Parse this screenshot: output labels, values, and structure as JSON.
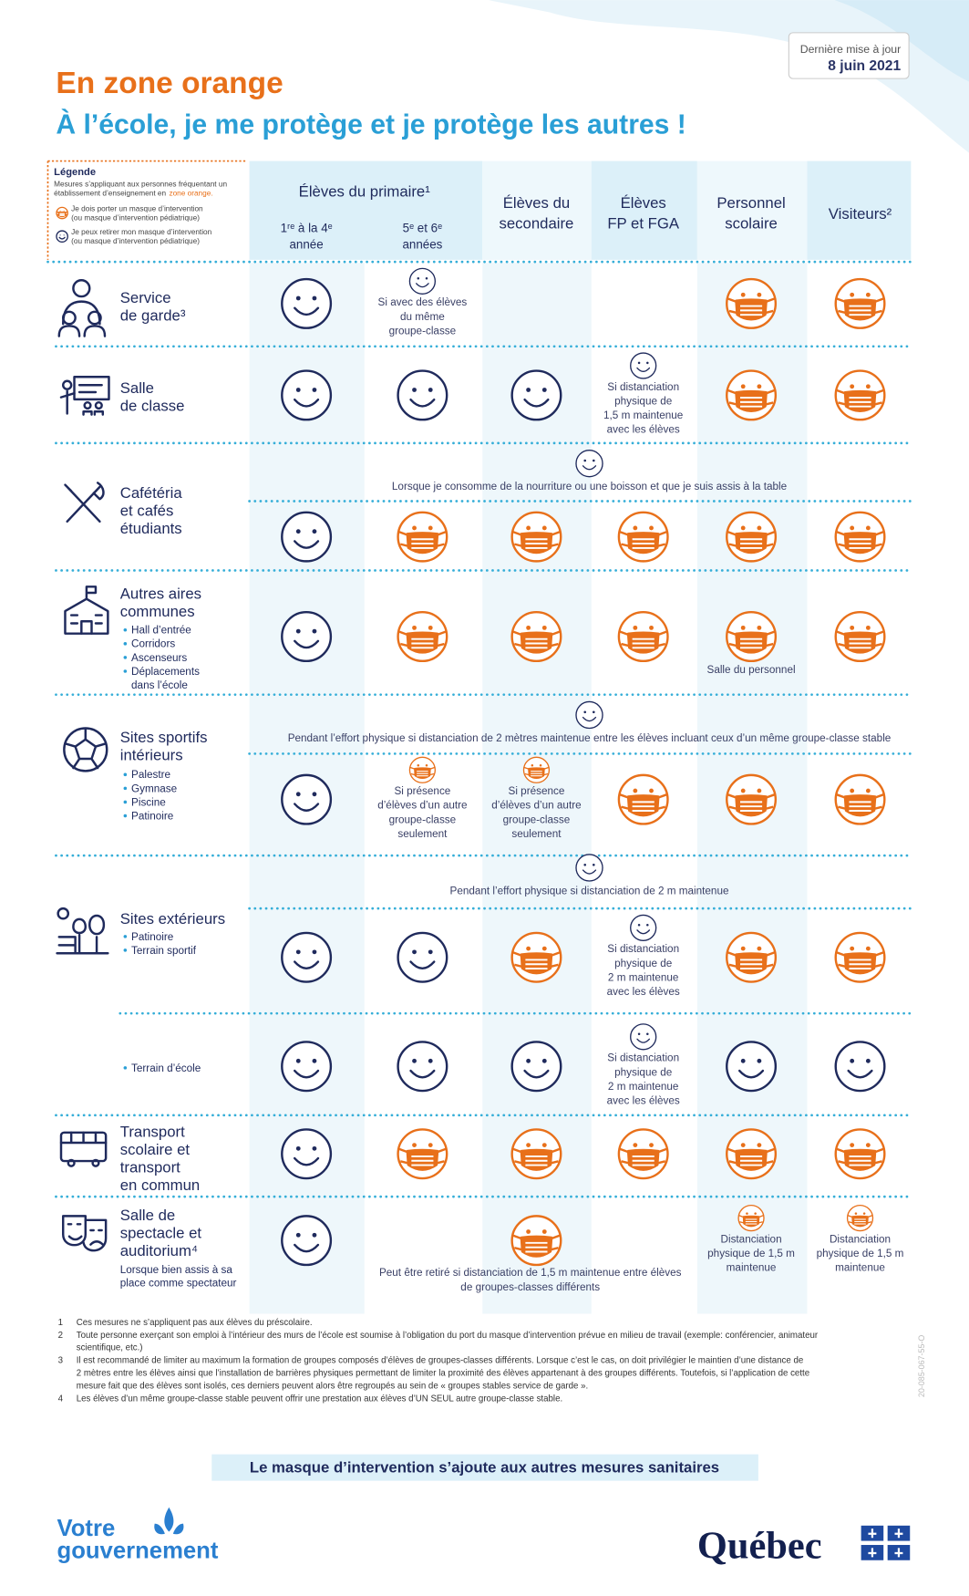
{
  "header": {
    "title": "En zone orange",
    "subtitle": "À l’école, je me protège et je protège les autres !",
    "updated_label": "Dernière mise à jour",
    "updated_date": "8 juin 2021"
  },
  "legend": {
    "title": "Légende",
    "intro": [
      "Mesures s’appliquant aux personnes fréquentant un",
      "établissement d’enseignement en"
    ],
    "intro_highlight": "zone orange.",
    "items": [
      {
        "icon": "mask",
        "text": [
          "Je dois porter un masque d’intervention",
          "(ou masque d’intervention pédiatrique)"
        ]
      },
      {
        "icon": "smile",
        "text": [
          "Je peux retirer mon masque d’intervention",
          "(ou masque d’intervention pédiatrique)"
        ]
      }
    ]
  },
  "column_group": "Élèves du primaire¹",
  "columns": [
    [
      "1ʳᵉ à la 4ᵉ",
      "année"
    ],
    [
      "5ᵉ et 6ᵉ",
      "années"
    ],
    [
      "Élèves du",
      "secondaire"
    ],
    [
      "Élèves",
      "FP et FGA"
    ],
    [
      "Personnel",
      "scolaire"
    ],
    [
      "Visiteurs²"
    ]
  ],
  "rows": [
    {
      "label": [
        "Service",
        "de garde³"
      ],
      "subrows": [
        {
          "cells": [
            {
              "icon": "smile"
            },
            {
              "icon": "smile",
              "note": [
                "Si avec des élèves",
                "du même",
                "groupe-classe"
              ]
            },
            null,
            null,
            {
              "icon": "mask"
            },
            {
              "icon": "mask"
            }
          ]
        }
      ]
    },
    {
      "label": [
        "Salle",
        "de classe"
      ],
      "subrows": [
        {
          "cells": [
            {
              "icon": "smile"
            },
            {
              "icon": "smile"
            },
            {
              "icon": "smile"
            },
            {
              "icon": "smile",
              "note": [
                "Si distanciation",
                "physique de",
                "1,5 m maintenue",
                "avec les élèves"
              ]
            },
            {
              "icon": "mask"
            },
            {
              "icon": "mask"
            }
          ]
        }
      ]
    },
    {
      "label": [
        "Cafétéria",
        "et cafés",
        "étudiants"
      ],
      "condition": {
        "icon": "smile",
        "text": "Lorsque je consomme de la nourriture ou une boisson et que je suis assis à la table"
      },
      "subrows": [
        {
          "cells": [
            {
              "icon": "smile"
            },
            {
              "icon": "mask"
            },
            {
              "icon": "mask"
            },
            {
              "icon": "mask"
            },
            {
              "icon": "mask"
            },
            {
              "icon": "mask"
            }
          ]
        }
      ]
    },
    {
      "label": [
        "Autres aires",
        "communes"
      ],
      "subrows": [
        {
          "bullets": [
            "Hall d’entrée",
            "Corridors",
            "Ascenseurs",
            [
              "Déplacements",
              "dans l’école"
            ]
          ],
          "cells": [
            {
              "icon": "smile"
            },
            {
              "icon": "mask"
            },
            {
              "icon": "mask"
            },
            {
              "icon": "mask"
            },
            {
              "icon": "mask",
              "note": [
                "Salle du personnel"
              ]
            },
            {
              "icon": "mask"
            }
          ]
        }
      ]
    },
    {
      "label": [
        "Sites sportifs",
        "intérieurs"
      ],
      "condition": {
        "icon": "smile",
        "text": "Pendant l’effort physique si distanciation de 2 mètres maintenue entre les élèves incluant ceux d’un même groupe-classe stable"
      },
      "subrows": [
        {
          "bullets": [
            "Palestre",
            "Gymnase",
            "Piscine",
            "Patinoire"
          ],
          "cells": [
            {
              "icon": "smile"
            },
            {
              "icon": "mask",
              "note": [
                "Si présence",
                "d’élèves d’un autre",
                "groupe-classe",
                "seulement"
              ]
            },
            {
              "icon": "mask",
              "note": [
                "Si présence",
                "d’élèves d’un autre",
                "groupe-classe",
                "seulement"
              ]
            },
            {
              "icon": "mask"
            },
            {
              "icon": "mask"
            },
            {
              "icon": "mask"
            }
          ]
        }
      ]
    },
    {
      "label": [
        "Sites extérieurs"
      ],
      "condition": {
        "icon": "smile",
        "text": "Pendant l’effort physique si distanciation de 2 m maintenue"
      },
      "subrows": [
        {
          "bullets": [
            "Patinoire",
            "Terrain sportif"
          ],
          "cells": [
            {
              "icon": "smile"
            },
            {
              "icon": "smile"
            },
            {
              "icon": "mask"
            },
            {
              "icon": "smile",
              "note": [
                "Si distanciation",
                "physique de",
                "2 m maintenue",
                "avec les élèves"
              ]
            },
            {
              "icon": "mask"
            },
            {
              "icon": "mask"
            }
          ]
        },
        {
          "bullets": [
            "Terrain d’école"
          ],
          "cells": [
            {
              "icon": "smile"
            },
            {
              "icon": "smile"
            },
            {
              "icon": "smile"
            },
            {
              "icon": "smile",
              "note": [
                "Si distanciation",
                "physique de",
                "2 m maintenue",
                "avec les élèves"
              ]
            },
            {
              "icon": "smile"
            },
            {
              "icon": "smile"
            }
          ]
        }
      ]
    },
    {
      "label": [
        "Transport",
        "scolaire et",
        "transport",
        "en commun"
      ],
      "subrows": [
        {
          "cells": [
            {
              "icon": "smile"
            },
            {
              "icon": "mask"
            },
            {
              "icon": "mask"
            },
            {
              "icon": "mask"
            },
            {
              "icon": "mask"
            },
            {
              "icon": "mask"
            }
          ]
        }
      ]
    },
    {
      "label": [
        "Salle de",
        "spectacle et",
        "auditorium⁴"
      ],
      "sublabel": [
        "Lorsque bien assis à sa",
        "place comme spectateur"
      ],
      "note": [
        "Peut être retiré si distanciation de 1,5 m maintenue entre élèves",
        "de groupes-classes différents"
      ],
      "subrows": [
        {
          "cells": [
            {
              "icon": "smile"
            },
            null,
            {
              "icon": "mask"
            },
            null,
            {
              "icon": "mask",
              "note": [
                "Distanciation",
                "physique de 1,5 m",
                "maintenue"
              ]
            },
            {
              "icon": "mask",
              "note": [
                "Distanciation",
                "physique de 1,5 m",
                "maintenue"
              ]
            }
          ]
        }
      ]
    }
  ],
  "footnotes": [
    {
      "number": "1",
      "lines": [
        "Ces mesures ne s’appliquent pas aux élèves du préscolaire."
      ]
    },
    {
      "number": "2",
      "lines": [
        "Toute personne exerçant son emploi à l’intérieur des murs de l’école est soumise à l’obligation du port du masque d’intervention prévue en milieu de travail (exemple: conférencier, animateur",
        "scientifique, etc.)"
      ]
    },
    {
      "number": "3",
      "lines": [
        "Il est recommandé de limiter au maximum la formation de groupes composés d’élèves de groupes-classes différents. Lorsque c’est le cas, on doit privilégier le maintien d’une distance de",
        "2 mètres entre les élèves ainsi que l’installation de barrières physiques permettant de limiter la proximité des élèves appartenant à des groupes différents. Toutefois, si l’application de cette",
        "mesure fait que des élèves sont isolés, ces derniers peuvent alors être regroupés au sein de « groupes stables service de garde »."
      ]
    },
    {
      "number": "4",
      "lines": [
        "Les élèves d’un même groupe-classe stable peuvent offrir une prestation aux élèves d’UN SEUL autre groupe-classe stable."
      ]
    }
  ],
  "document_code": "20-085-067-55-O",
  "banner": "Le masque d’intervention s’ajoute aux autres mesures sanitaires",
  "footer": {
    "government": [
      "Votre",
      "gouvernement"
    ],
    "brand": "Québec"
  }
}
